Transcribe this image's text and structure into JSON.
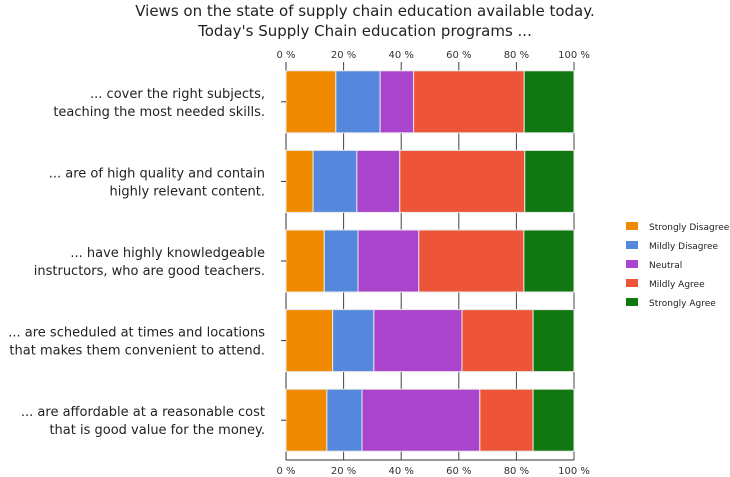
{
  "chart_data": {
    "type": "bar",
    "orientation": "horizontal",
    "stacked": "percent",
    "title": [
      "Views on the state of supply chain education  available today.",
      "Today's Supply Chain education programs  ..."
    ],
    "xlabel": "",
    "ylabel": "",
    "xlim": [
      0,
      100
    ],
    "x_ticks": [
      "0 %",
      "20 %",
      "40 %",
      "60 %",
      "80 %",
      "100 %"
    ],
    "categories": [
      [
        "... cover the right subjects,",
        "teaching the most needed skills."
      ],
      [
        "... are of high quality and contain",
        "highly relevant content."
      ],
      [
        "... have highly knowledgeable",
        "instructors, who are good teachers."
      ],
      [
        "... are scheduled at times and locations",
        "that makes them convenient to attend."
      ],
      [
        "... are affordable at a reasonable cost",
        "that is good value for the money."
      ]
    ],
    "series": [
      {
        "name": "Strongly Disagree",
        "color": "#f08a00",
        "values": [
          17.3,
          9.4,
          13.3,
          16.2,
          14.2
        ]
      },
      {
        "name": "Mildly Disagree",
        "color": "#5588dd",
        "values": [
          15.4,
          15.2,
          11.7,
          14.3,
          12.2
        ]
      },
      {
        "name": "Neutral",
        "color": "#aa44cc",
        "values": [
          11.6,
          14.9,
          21.1,
          30.6,
          40.9
        ]
      },
      {
        "name": "Mildly Agree",
        "color": "#ee5538",
        "values": [
          38.4,
          43.4,
          36.5,
          24.7,
          18.5
        ]
      },
      {
        "name": "Strongly Agree",
        "color": "#117711",
        "values": [
          17.3,
          17.1,
          17.4,
          14.2,
          14.2
        ]
      }
    ],
    "legend_position": "right"
  }
}
